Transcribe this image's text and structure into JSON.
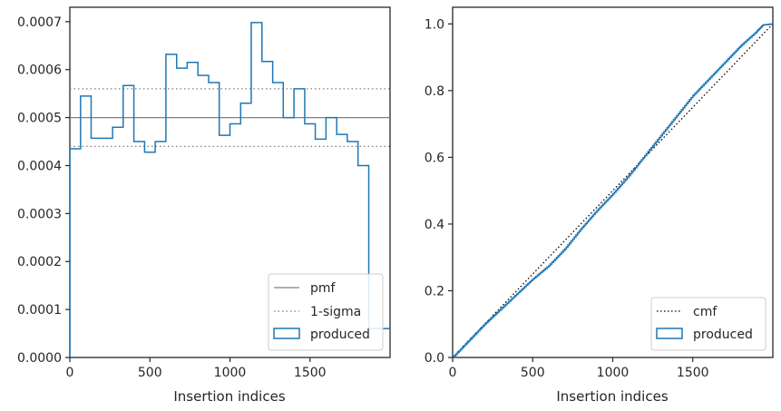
{
  "chart_data": [
    {
      "type": "step",
      "xlabel": "Insertion indices",
      "ylabel": "",
      "xlim": [
        0,
        2000
      ],
      "ylim": [
        0,
        0.00073
      ],
      "xticks": [
        0,
        500,
        1000,
        1500
      ],
      "yticks": [
        "0.0000",
        "0.0001",
        "0.0002",
        "0.0003",
        "0.0004",
        "0.0005",
        "0.0006",
        "0.0007"
      ],
      "ytick_values": [
        0,
        0.0001,
        0.0002,
        0.0003,
        0.0004,
        0.0005,
        0.0006,
        0.0007
      ],
      "grid": false,
      "legend": {
        "placement": "lower-right",
        "entries": [
          "pmf",
          "1-sigma",
          "produced"
        ]
      },
      "reference_lines": [
        {
          "name": "pmf",
          "y": 0.0005,
          "style": "solid",
          "color": "#808080"
        },
        {
          "name": "1-sigma",
          "y": 0.00056,
          "style": "dotted",
          "color": "#808080"
        },
        {
          "name": "1-sigma",
          "y": 0.00044,
          "style": "dotted",
          "color": "#808080"
        }
      ],
      "series": [
        {
          "name": "produced",
          "color": "#1f77b4",
          "bin_edges": [
            0,
            67,
            133,
            200,
            267,
            333,
            400,
            467,
            533,
            600,
            667,
            733,
            800,
            867,
            933,
            1000,
            1067,
            1133,
            1200,
            1267,
            1333,
            1400,
            1467,
            1533,
            1600,
            1667,
            1733,
            1800,
            1867,
            1933,
            2000
          ],
          "values": [
            0.000435,
            0.000545,
            0.000457,
            0.000457,
            0.00048,
            0.000567,
            0.00045,
            0.000428,
            0.00045,
            0.000632,
            0.000603,
            0.000615,
            0.000588,
            0.000573,
            0.000463,
            0.000487,
            0.00053,
            0.000698,
            0.000617,
            0.000573,
            0.0005,
            0.00056,
            0.000487,
            0.000455,
            0.0005,
            0.000465,
            0.00045,
            0.0004,
            6.02e-05,
            6.02e-05
          ]
        }
      ]
    },
    {
      "type": "line",
      "xlabel": "Insertion indices",
      "ylabel": "",
      "xlim": [
        0,
        2000
      ],
      "ylim": [
        0,
        1.05
      ],
      "xticks": [
        0,
        500,
        1000,
        1500
      ],
      "yticks": [
        "0.0",
        "0.2",
        "0.4",
        "0.6",
        "0.8",
        "1.0"
      ],
      "ytick_values": [
        0,
        0.2,
        0.4,
        0.6,
        0.8,
        1.0
      ],
      "grid": false,
      "legend": {
        "placement": "lower-right",
        "entries": [
          "cmf",
          "produced"
        ]
      },
      "series": [
        {
          "name": "cmf",
          "style": "dotted",
          "color": "#000000",
          "x": [
            0,
            2000
          ],
          "y": [
            0,
            1.0
          ]
        },
        {
          "name": "produced",
          "color": "#1f77b4",
          "x": [
            0,
            100,
            200,
            300,
            400,
            500,
            600,
            700,
            800,
            900,
            1000,
            1100,
            1200,
            1300,
            1400,
            1500,
            1600,
            1700,
            1800,
            1900,
            1940,
            2000
          ],
          "y": [
            0,
            0.05,
            0.1,
            0.145,
            0.19,
            0.235,
            0.275,
            0.325,
            0.385,
            0.44,
            0.49,
            0.545,
            0.605,
            0.665,
            0.725,
            0.785,
            0.835,
            0.885,
            0.935,
            0.978,
            0.997,
            1.0
          ]
        }
      ]
    }
  ]
}
